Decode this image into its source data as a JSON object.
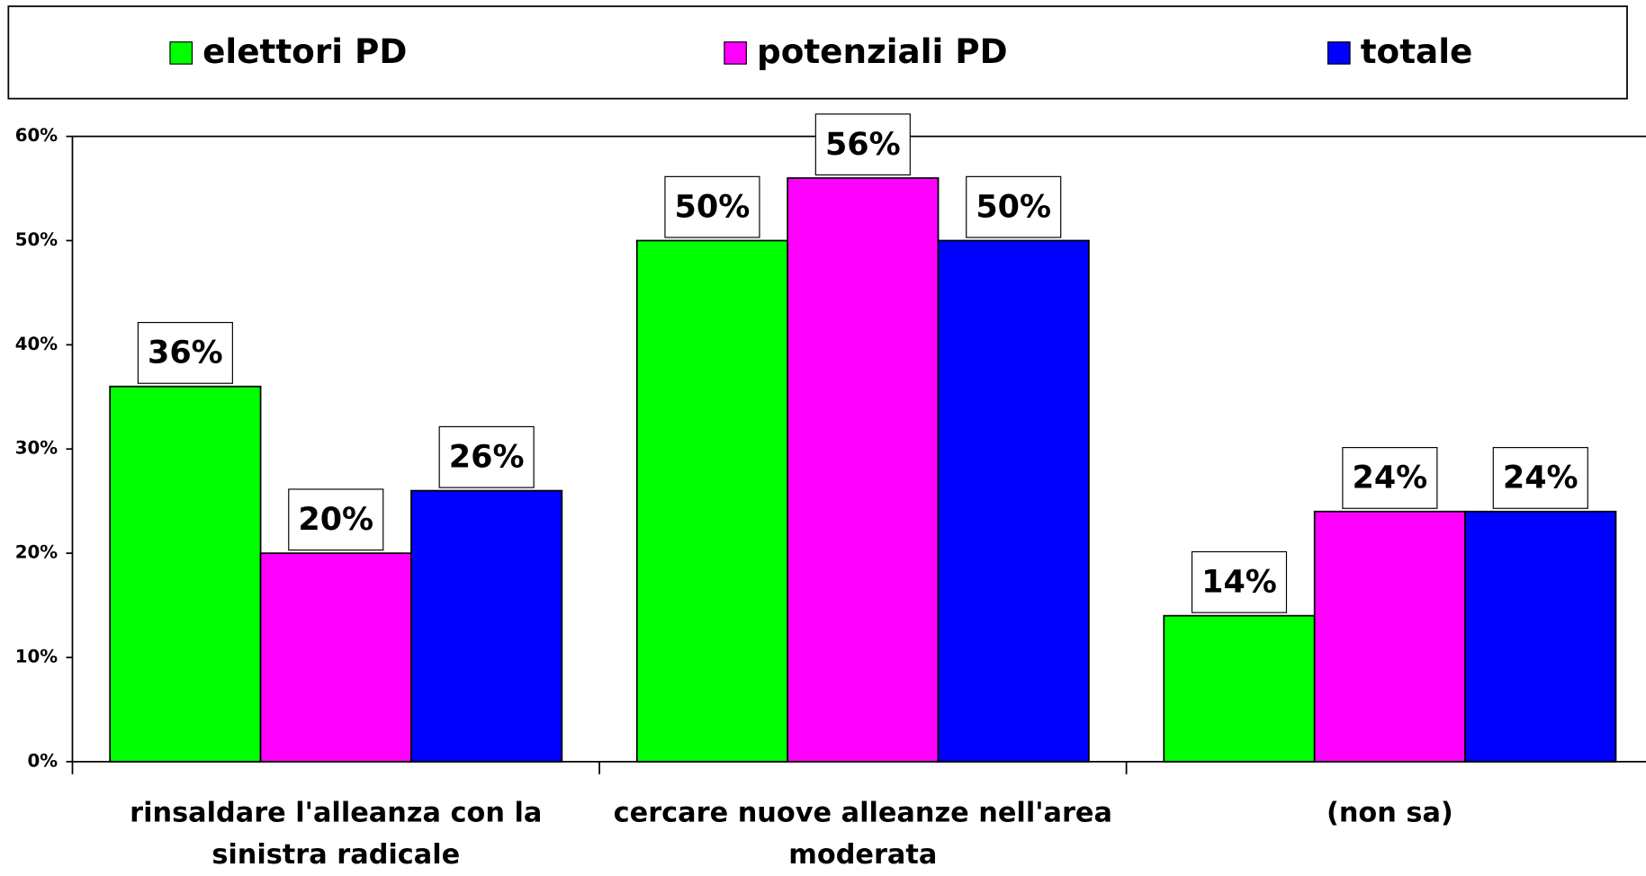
{
  "chart_data": {
    "type": "bar",
    "categories": [
      "rinsaldare l'alleanza con la sinistra radicale",
      "cercare nuove alleanze nell'area moderata",
      "(non sa)"
    ],
    "series": [
      {
        "name": "elettori PD",
        "color": "#00ff00",
        "values": [
          36,
          50,
          14
        ],
        "value_labels": [
          "36%",
          "50%",
          "14%"
        ]
      },
      {
        "name": "potenziali PD",
        "color": "#ff00ff",
        "values": [
          20,
          56,
          24
        ],
        "value_labels": [
          "20%",
          "56%",
          "24%"
        ]
      },
      {
        "name": "totale",
        "color": "#0000ff",
        "values": [
          26,
          50,
          24
        ],
        "value_labels": [
          "26%",
          "50%",
          "24%"
        ]
      }
    ],
    "ylim": [
      0,
      60
    ],
    "yticks": [
      {
        "value": 0,
        "label": "0%"
      },
      {
        "value": 10,
        "label": "10%"
      },
      {
        "value": 20,
        "label": "20%"
      },
      {
        "value": 30,
        "label": "30%"
      },
      {
        "value": 40,
        "label": "40%"
      },
      {
        "value": 50,
        "label": "50%"
      },
      {
        "value": 60,
        "label": "60%"
      }
    ],
    "legend": "top",
    "grid": false
  }
}
